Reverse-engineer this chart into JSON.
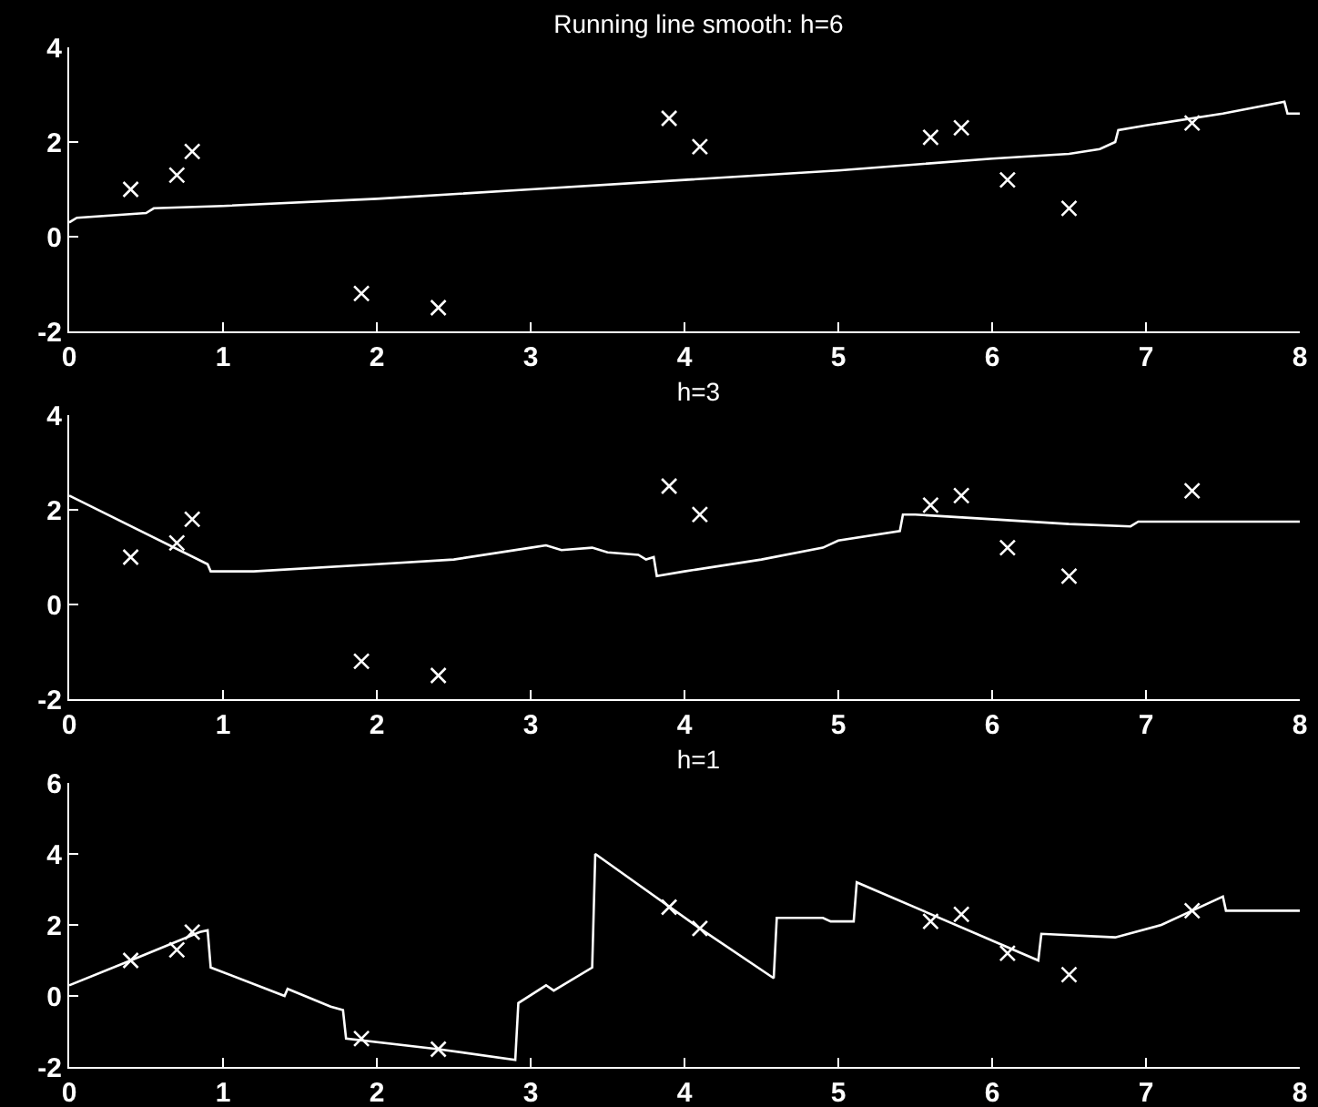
{
  "chart_data": [
    {
      "type": "scatter",
      "title": "Running line smooth: h=6",
      "xlim": [
        0,
        8
      ],
      "xticks": [
        0,
        1,
        2,
        3,
        4,
        5,
        6,
        7,
        8
      ],
      "ylim": [
        -2,
        4
      ],
      "yticks": [
        -2,
        0,
        2,
        4
      ],
      "grid": false,
      "series": [
        {
          "type": "scatter",
          "marker": "cross",
          "color": "#ffffff",
          "x": [
            0.4,
            0.7,
            0.8,
            1.9,
            2.4,
            3.9,
            4.1,
            5.6,
            5.8,
            6.1,
            6.5,
            7.3
          ],
          "values": [
            1.0,
            1.3,
            1.8,
            -1.2,
            -1.5,
            2.5,
            1.9,
            2.1,
            2.3,
            1.2,
            0.6,
            2.4
          ]
        },
        {
          "type": "line",
          "marker": "none",
          "line_style": "solid",
          "color": "#ffffff",
          "x": [
            0,
            0.05,
            0.5,
            0.55,
            1,
            2,
            3,
            4,
            5,
            6,
            6.5,
            6.7,
            6.8,
            6.82,
            7,
            7.5,
            7.9,
            7.92,
            8
          ],
          "values": [
            0.3,
            0.4,
            0.5,
            0.6,
            0.65,
            0.8,
            1.0,
            1.2,
            1.4,
            1.65,
            1.75,
            1.85,
            2.0,
            2.25,
            2.35,
            2.6,
            2.85,
            2.6,
            2.6
          ]
        }
      ]
    },
    {
      "type": "scatter",
      "title": "h=3",
      "xlim": [
        0,
        8
      ],
      "xticks": [
        0,
        1,
        2,
        3,
        4,
        5,
        6,
        7,
        8
      ],
      "ylim": [
        -2,
        4
      ],
      "yticks": [
        -2,
        0,
        2,
        4
      ],
      "grid": false,
      "series": [
        {
          "type": "scatter",
          "marker": "cross",
          "color": "#ffffff",
          "x": [
            0.4,
            0.7,
            0.8,
            1.9,
            2.4,
            3.9,
            4.1,
            5.6,
            5.8,
            6.1,
            6.5,
            7.3
          ],
          "values": [
            1.0,
            1.3,
            1.8,
            -1.2,
            -1.5,
            2.5,
            1.9,
            2.1,
            2.3,
            1.2,
            0.6,
            2.4
          ]
        },
        {
          "type": "line",
          "marker": "none",
          "line_style": "solid",
          "color": "#ffffff",
          "x": [
            0,
            0.9,
            0.92,
            1.2,
            2,
            2.5,
            3,
            3.1,
            3.2,
            3.4,
            3.5,
            3.7,
            3.75,
            3.8,
            3.82,
            4,
            4.5,
            4.9,
            5,
            5.4,
            5.42,
            5.5,
            6,
            6.5,
            6.9,
            6.95,
            8
          ],
          "values": [
            2.3,
            0.85,
            0.7,
            0.7,
            0.85,
            0.95,
            1.2,
            1.25,
            1.15,
            1.2,
            1.1,
            1.05,
            0.95,
            1.0,
            0.6,
            0.7,
            0.95,
            1.2,
            1.35,
            1.55,
            1.9,
            1.9,
            1.8,
            1.7,
            1.65,
            1.75,
            1.75
          ]
        }
      ]
    },
    {
      "type": "scatter",
      "title": "h=1",
      "xlim": [
        0,
        8
      ],
      "xticks": [
        0,
        1,
        2,
        3,
        4,
        5,
        6,
        7,
        8
      ],
      "ylim": [
        -2,
        6
      ],
      "yticks": [
        -2,
        0,
        2,
        4,
        6
      ],
      "grid": false,
      "series": [
        {
          "type": "scatter",
          "marker": "cross",
          "color": "#ffffff",
          "x": [
            0.4,
            0.7,
            0.8,
            1.9,
            2.4,
            3.9,
            4.1,
            5.6,
            5.8,
            6.1,
            6.5,
            7.3
          ],
          "values": [
            1.0,
            1.3,
            1.8,
            -1.2,
            -1.5,
            2.5,
            1.9,
            2.1,
            2.3,
            1.2,
            0.6,
            2.4
          ]
        },
        {
          "type": "line",
          "marker": "none",
          "line_style": "solid",
          "color": "#ffffff",
          "x": [
            0,
            0.4,
            0.85,
            0.9,
            0.92,
            1.4,
            1.42,
            1.7,
            1.78,
            1.8,
            2.4,
            2.9,
            2.92,
            3.1,
            3.15,
            3.4,
            3.42,
            4.1,
            4.58,
            4.6,
            4.9,
            4.95,
            5.1,
            5.12,
            6.3,
            6.32,
            6.8,
            7.1,
            7.3,
            7.5,
            7.52,
            8
          ],
          "values": [
            0.3,
            1.0,
            1.8,
            1.85,
            0.8,
            0.0,
            0.2,
            -0.3,
            -0.4,
            -1.2,
            -1.5,
            -1.8,
            -0.2,
            0.3,
            0.15,
            0.8,
            4.0,
            1.9,
            0.5,
            2.2,
            2.2,
            2.1,
            2.1,
            3.2,
            1.0,
            1.75,
            1.65,
            2.0,
            2.4,
            2.8,
            2.4,
            2.4
          ]
        }
      ]
    }
  ]
}
